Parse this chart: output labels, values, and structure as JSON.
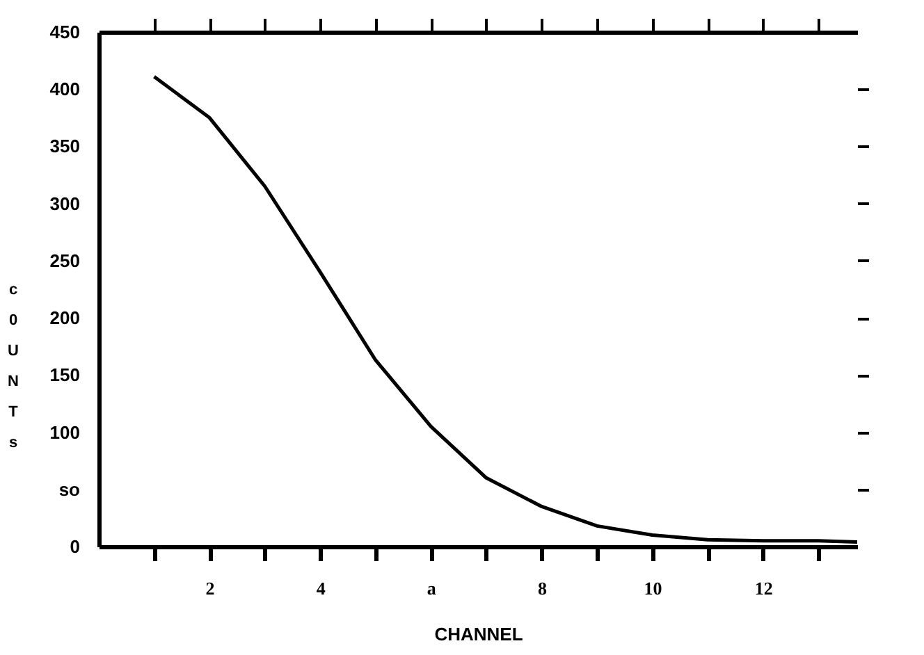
{
  "chart_data": {
    "type": "line",
    "xlabel": "CHANNEL",
    "ylabel": [
      "c",
      "0",
      "U",
      "N",
      "T",
      "s"
    ],
    "x": [
      1,
      2,
      3,
      4,
      5,
      6,
      7,
      8,
      9,
      10,
      11,
      12,
      13,
      13.7
    ],
    "values": [
      411,
      375,
      315,
      240,
      163,
      105,
      60,
      35,
      18,
      10,
      6,
      5,
      5,
      4
    ],
    "color": "#000000",
    "marker": "none",
    "line_style": "solid",
    "grid": false,
    "xlim": [
      0,
      13.7
    ],
    "xticks": [
      {
        "value": 1,
        "label": null
      },
      2,
      {
        "value": 3,
        "label": null
      },
      4,
      {
        "value": 5,
        "label": null
      },
      {
        "value": 6,
        "label": "a"
      },
      {
        "value": 7,
        "label": null
      },
      8,
      {
        "value": 9,
        "label": null
      },
      10,
      {
        "value": 11,
        "label": null
      },
      12,
      {
        "value": 13,
        "label": null
      }
    ],
    "ylim": [
      0,
      450
    ],
    "yticks": [
      0,
      {
        "value": 50,
        "label": "so"
      },
      100,
      150,
      200,
      250,
      300,
      350,
      400,
      450
    ]
  }
}
